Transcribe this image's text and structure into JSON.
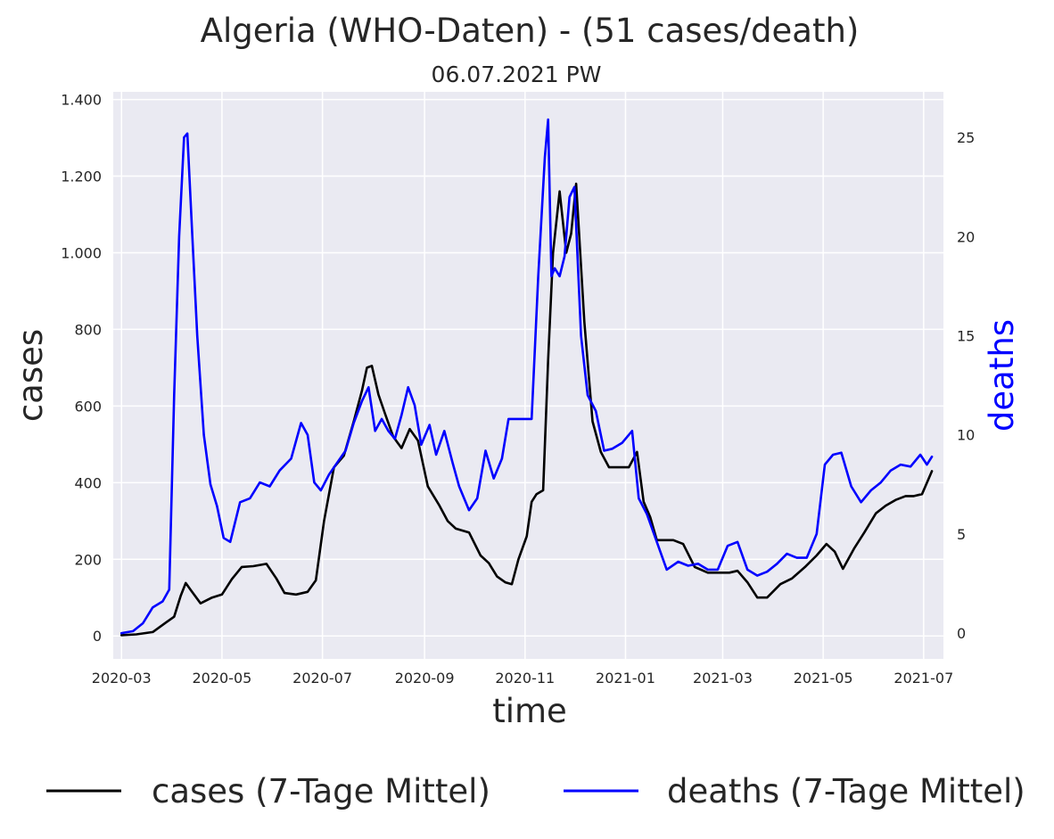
{
  "chart_data": {
    "type": "line",
    "title": "Algeria (WHO-Daten) - (51 cases/death)",
    "subtitle": "06.07.2021 PW",
    "xlabel": "time",
    "ylabel_left": "cases",
    "ylabel_right": "deaths",
    "x_ticks": [
      "2020-03",
      "2020-05",
      "2020-07",
      "2020-09",
      "2020-11",
      "2021-01",
      "2021-03",
      "2021-05",
      "2021-07"
    ],
    "y_left_ticks": [
      {
        "value": 0,
        "label": "0"
      },
      {
        "value": 200,
        "label": "200"
      },
      {
        "value": 400,
        "label": "400"
      },
      {
        "value": 600,
        "label": "600"
      },
      {
        "value": 800,
        "label": "800"
      },
      {
        "value": 1000,
        "label": "1.000"
      },
      {
        "value": 1200,
        "label": "1.200"
      },
      {
        "value": 1400,
        "label": "1.400"
      }
    ],
    "y_right_ticks": [
      {
        "value": 0,
        "label": "0"
      },
      {
        "value": 5,
        "label": "5"
      },
      {
        "value": 10,
        "label": "10"
      },
      {
        "value": 15,
        "label": "15"
      },
      {
        "value": 20,
        "label": "20"
      },
      {
        "value": 25,
        "label": "25"
      }
    ],
    "ylim_left": [
      -60,
      1420
    ],
    "ylim_right": [
      -1.3,
      27.3
    ],
    "grid": true,
    "legend_position": "bottom",
    "series": [
      {
        "name": "cases (7-Tage Mittel)",
        "color": "#000000",
        "axis": "left",
        "x": [
          "2020-03-01",
          "2020-03-10",
          "2020-03-20",
          "2020-03-28",
          "2020-04-02",
          "2020-04-06",
          "2020-04-09",
          "2020-04-12",
          "2020-04-18",
          "2020-04-25",
          "2020-05-01",
          "2020-05-07",
          "2020-05-13",
          "2020-05-20",
          "2020-05-28",
          "2020-06-03",
          "2020-06-08",
          "2020-06-15",
          "2020-06-22",
          "2020-06-27",
          "2020-07-02",
          "2020-07-08",
          "2020-07-14",
          "2020-07-20",
          "2020-07-25",
          "2020-07-28",
          "2020-07-31",
          "2020-08-04",
          "2020-08-08",
          "2020-08-13",
          "2020-08-18",
          "2020-08-23",
          "2020-08-28",
          "2020-09-03",
          "2020-09-10",
          "2020-09-15",
          "2020-09-20",
          "2020-09-28",
          "2020-10-05",
          "2020-10-10",
          "2020-10-15",
          "2020-10-20",
          "2020-10-24",
          "2020-10-28",
          "2020-11-02",
          "2020-11-05",
          "2020-11-08",
          "2020-11-12",
          "2020-11-15",
          "2020-11-18",
          "2020-11-22",
          "2020-11-26",
          "2020-11-29",
          "2020-12-02",
          "2020-12-07",
          "2020-12-12",
          "2020-12-17",
          "2020-12-22",
          "2020-12-28",
          "2021-01-03",
          "2021-01-08",
          "2021-01-12",
          "2021-01-16",
          "2021-01-20",
          "2021-01-25",
          "2021-01-30",
          "2021-02-05",
          "2021-02-12",
          "2021-02-20",
          "2021-02-28",
          "2021-03-05",
          "2021-03-10",
          "2021-03-16",
          "2021-03-22",
          "2021-03-28",
          "2021-04-05",
          "2021-04-12",
          "2021-04-20",
          "2021-04-27",
          "2021-05-03",
          "2021-05-08",
          "2021-05-13",
          "2021-05-20",
          "2021-05-26",
          "2021-06-02",
          "2021-06-08",
          "2021-06-14",
          "2021-06-20",
          "2021-06-25",
          "2021-06-30",
          "2021-07-04",
          "2021-07-06"
        ],
        "values": [
          2,
          4,
          10,
          35,
          50,
          105,
          138,
          120,
          85,
          100,
          108,
          148,
          180,
          182,
          188,
          150,
          112,
          108,
          115,
          145,
          300,
          440,
          470,
          560,
          640,
          700,
          705,
          630,
          580,
          520,
          490,
          540,
          510,
          390,
          340,
          300,
          280,
          270,
          210,
          190,
          155,
          140,
          135,
          200,
          260,
          350,
          370,
          380,
          720,
          1000,
          1160,
          1000,
          1050,
          1180,
          820,
          560,
          480,
          440,
          440,
          440,
          480,
          350,
          310,
          250,
          250,
          250,
          240,
          180,
          165,
          165,
          165,
          170,
          140,
          100,
          100,
          135,
          150,
          180,
          210,
          240,
          220,
          175,
          230,
          270,
          320,
          340,
          355,
          365,
          365,
          370,
          410,
          430
        ]
      },
      {
        "name": "deaths (7-Tage Mittel)",
        "color": "#0000ff",
        "axis": "right",
        "x": [
          "2020-03-01",
          "2020-03-08",
          "2020-03-14",
          "2020-03-20",
          "2020-03-26",
          "2020-03-30",
          "2020-04-02",
          "2020-04-05",
          "2020-04-08",
          "2020-04-10",
          "2020-04-13",
          "2020-04-16",
          "2020-04-20",
          "2020-04-24",
          "2020-04-28",
          "2020-05-02",
          "2020-05-06",
          "2020-05-12",
          "2020-05-18",
          "2020-05-24",
          "2020-05-30",
          "2020-06-05",
          "2020-06-12",
          "2020-06-18",
          "2020-06-22",
          "2020-06-26",
          "2020-06-30",
          "2020-07-05",
          "2020-07-10",
          "2020-07-15",
          "2020-07-20",
          "2020-07-25",
          "2020-07-29",
          "2020-08-02",
          "2020-08-06",
          "2020-08-10",
          "2020-08-14",
          "2020-08-18",
          "2020-08-22",
          "2020-08-26",
          "2020-08-30",
          "2020-09-04",
          "2020-09-08",
          "2020-09-13",
          "2020-09-18",
          "2020-09-22",
          "2020-09-28",
          "2020-10-03",
          "2020-10-08",
          "2020-10-13",
          "2020-10-18",
          "2020-10-22",
          "2020-10-26",
          "2020-10-31",
          "2020-11-05",
          "2020-11-09",
          "2020-11-13",
          "2020-11-15",
          "2020-11-17",
          "2020-11-19",
          "2020-11-22",
          "2020-11-25",
          "2020-11-28",
          "2020-12-01",
          "2020-12-05",
          "2020-12-09",
          "2020-12-14",
          "2020-12-19",
          "2020-12-24",
          "2020-12-30",
          "2021-01-05",
          "2021-01-09",
          "2021-01-14",
          "2021-01-20",
          "2021-01-26",
          "2021-02-02",
          "2021-02-08",
          "2021-02-14",
          "2021-02-20",
          "2021-02-26",
          "2021-03-04",
          "2021-03-10",
          "2021-03-16",
          "2021-03-22",
          "2021-03-28",
          "2021-04-03",
          "2021-04-09",
          "2021-04-15",
          "2021-04-21",
          "2021-04-27",
          "2021-05-02",
          "2021-05-07",
          "2021-05-12",
          "2021-05-18",
          "2021-05-24",
          "2021-05-30",
          "2021-06-05",
          "2021-06-11",
          "2021-06-17",
          "2021-06-23",
          "2021-06-29",
          "2021-07-03",
          "2021-07-06"
        ],
        "values": [
          0,
          0.1,
          0.5,
          1.3,
          1.6,
          2.2,
          12,
          20,
          25,
          25.2,
          20,
          15,
          10,
          7.5,
          6.4,
          4.8,
          4.6,
          6.6,
          6.8,
          7.6,
          7.4,
          8.2,
          8.8,
          10.6,
          10,
          7.6,
          7.2,
          8,
          8.6,
          9.2,
          10.6,
          11.7,
          12.4,
          10.2,
          10.8,
          10.2,
          9.8,
          11,
          12.4,
          11.5,
          9.5,
          10.5,
          9,
          10.2,
          8.6,
          7.4,
          6.2,
          6.8,
          9.2,
          7.8,
          8.8,
          10.8,
          10.8,
          10.8,
          10.8,
          18,
          24,
          25.9,
          18,
          18.4,
          18,
          19,
          22,
          22.5,
          15,
          12,
          11.2,
          9.2,
          9.3,
          9.6,
          10.2,
          6.8,
          6,
          4.6,
          3.2,
          3.6,
          3.4,
          3.5,
          3.2,
          3.2,
          4.4,
          4.6,
          3.2,
          2.9,
          3.1,
          3.5,
          4,
          3.8,
          3.8,
          5,
          8.5,
          9.0,
          9.1,
          7.4,
          6.6,
          7.2,
          7.6,
          8.2,
          8.5,
          8.4,
          9.0,
          8.5,
          8.9
        ]
      }
    ]
  }
}
